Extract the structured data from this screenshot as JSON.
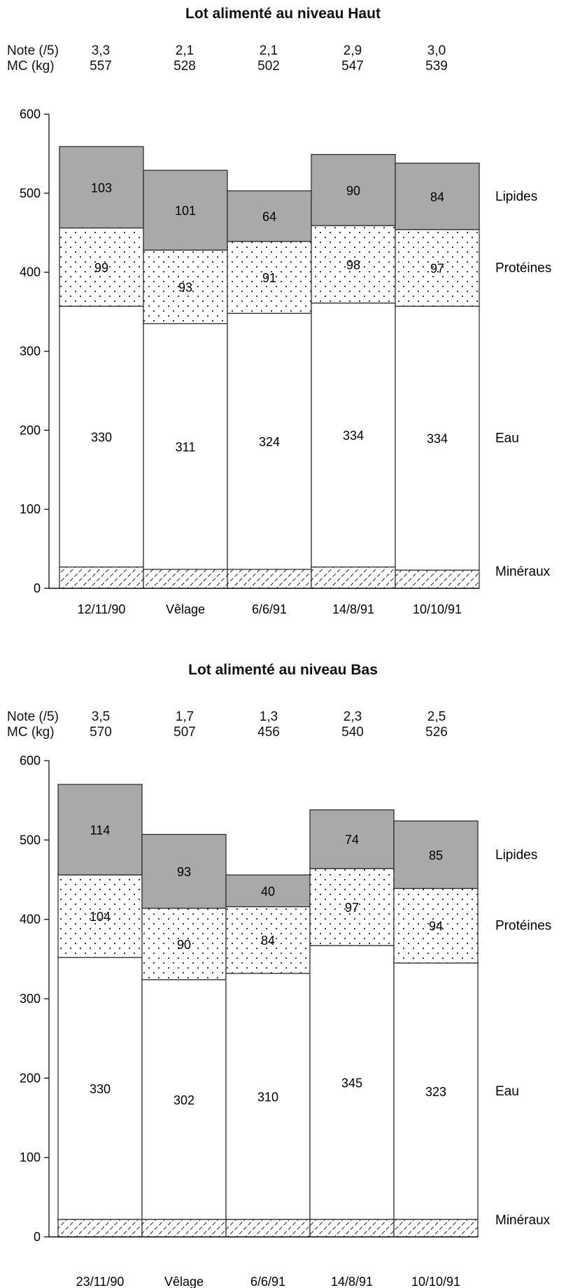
{
  "chart_data": [
    {
      "type": "bar",
      "stacked": true,
      "title": "Lot alimenté au niveau Haut",
      "categories": [
        "12/11/90",
        "Vêlage",
        "6/6/91",
        "14/8/91",
        "10/10/91"
      ],
      "row_labels": {
        "note": "Note (/5)",
        "mc": "MC (kg)"
      },
      "note": [
        "3,3",
        "2,1",
        "2,1",
        "2,9",
        "3,0"
      ],
      "mc": [
        "557",
        "528",
        "502",
        "547",
        "539"
      ],
      "series": [
        {
          "name": "Minéraux",
          "values": [
            27,
            24,
            24,
            27,
            23
          ],
          "show_label": false,
          "color": "#ffffff",
          "pattern": "hatch"
        },
        {
          "name": "Eau",
          "values": [
            330,
            311,
            324,
            334,
            334
          ],
          "show_label": true,
          "color": "#ffffff",
          "pattern": "none"
        },
        {
          "name": "Protéines",
          "values": [
            99,
            93,
            91,
            98,
            97
          ],
          "show_label": true,
          "color": "#ffffff",
          "pattern": "dots"
        },
        {
          "name": "Lipides",
          "values": [
            103,
            101,
            64,
            90,
            84
          ],
          "show_label": true,
          "color": "#a9a9a9",
          "pattern": "none"
        }
      ],
      "ylim": [
        0,
        600
      ],
      "yticks": [
        0,
        100,
        200,
        300,
        400,
        500,
        600
      ]
    },
    {
      "type": "bar",
      "stacked": true,
      "title": "Lot alimenté au niveau Bas",
      "categories": [
        "23/11/90",
        "Vêlage",
        "6/6/91",
        "14/8/91",
        "10/10/91"
      ],
      "row_labels": {
        "note": "Note (/5)",
        "mc": "MC (kg)"
      },
      "note": [
        "3,5",
        "1,7",
        "1,3",
        "2,3",
        "2,5"
      ],
      "mc": [
        "570",
        "507",
        "456",
        "540",
        "526"
      ],
      "series": [
        {
          "name": "Minéraux",
          "values": [
            22,
            22,
            22,
            22,
            22
          ],
          "show_label": false,
          "color": "#ffffff",
          "pattern": "hatch"
        },
        {
          "name": "Eau",
          "values": [
            330,
            302,
            310,
            345,
            323
          ],
          "show_label": true,
          "color": "#ffffff",
          "pattern": "none"
        },
        {
          "name": "Protéines",
          "values": [
            104,
            90,
            84,
            97,
            94
          ],
          "show_label": true,
          "color": "#ffffff",
          "pattern": "dots"
        },
        {
          "name": "Lipides",
          "values": [
            114,
            93,
            40,
            74,
            85
          ],
          "show_label": true,
          "color": "#a9a9a9",
          "pattern": "none"
        }
      ],
      "ylim": [
        0,
        600
      ],
      "yticks": [
        0,
        100,
        200,
        300,
        400,
        500,
        600
      ]
    }
  ]
}
